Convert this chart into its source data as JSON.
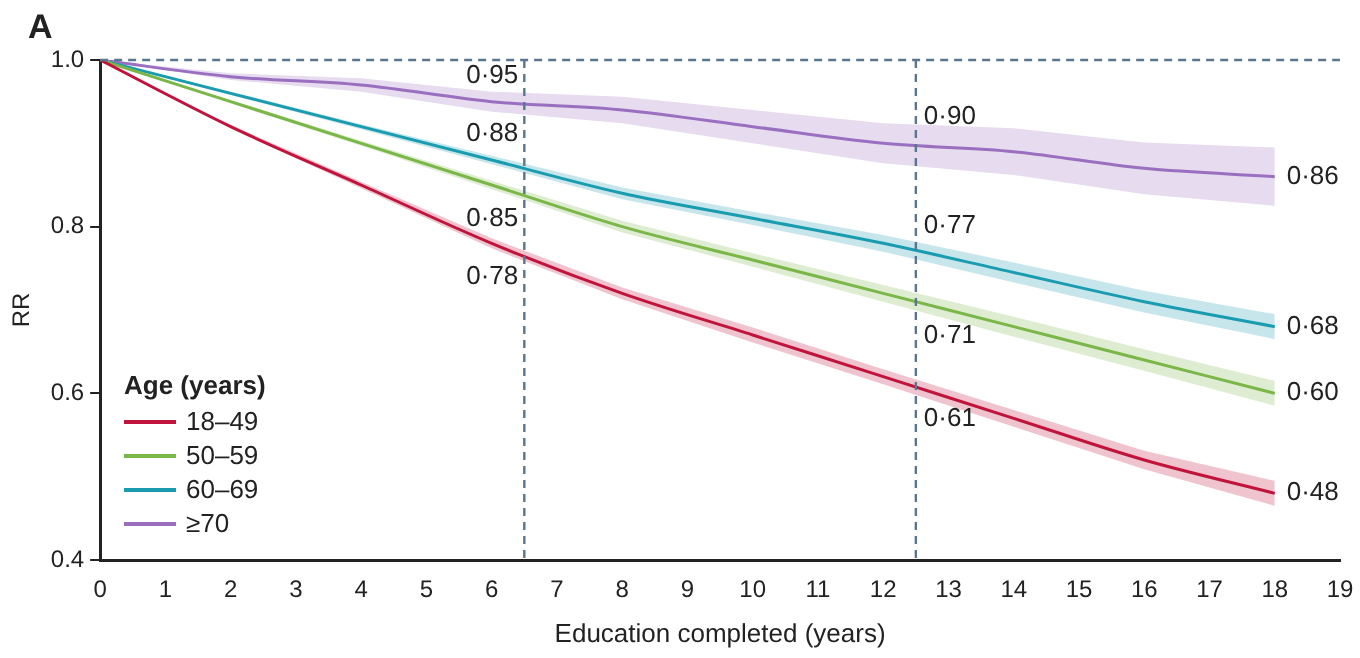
{
  "chart_data": {
    "type": "line",
    "title": "A",
    "xlabel": "Education completed (years)",
    "ylabel": "RR",
    "legend_title": "Age (years)",
    "legend": "bottom left",
    "grid": false,
    "marker": "none",
    "line_style": "solid",
    "x": [
      0,
      2,
      4,
      6,
      8,
      10,
      12,
      14,
      16,
      18
    ],
    "xlim": [
      0,
      19
    ],
    "xticks": [
      0,
      1,
      2,
      3,
      4,
      5,
      6,
      7,
      8,
      9,
      10,
      11,
      12,
      13,
      14,
      15,
      16,
      17,
      18,
      19
    ],
    "ylim": [
      0.4,
      1.0
    ],
    "yticks": [
      0.4,
      0.6,
      0.8,
      {
        "value": 1.0,
        "label": "1.0"
      }
    ],
    "series": [
      {
        "name": "18–49",
        "color": "#c0143c",
        "values": [
          1,
          0.92,
          0.85,
          0.78,
          0.72,
          0.67,
          0.62,
          0.57,
          0.52,
          0.48
        ],
        "lower": [
          1,
          0.918,
          0.846,
          0.774,
          0.713,
          0.661,
          0.611,
          0.56,
          0.509,
          0.465
        ],
        "upper": [
          1,
          0.922,
          0.854,
          0.786,
          0.727,
          0.679,
          0.629,
          0.58,
          0.531,
          0.495
        ]
      },
      {
        "name": "50–59",
        "color": "#7ab648",
        "values": [
          1,
          0.95,
          0.9,
          0.85,
          0.8,
          0.76,
          0.72,
          0.68,
          0.64,
          0.6
        ],
        "lower": [
          1,
          0.948,
          0.897,
          0.845,
          0.793,
          0.752,
          0.71,
          0.668,
          0.627,
          0.585
        ],
        "upper": [
          1,
          0.952,
          0.903,
          0.855,
          0.807,
          0.768,
          0.73,
          0.692,
          0.653,
          0.615
        ]
      },
      {
        "name": "60–69",
        "color": "#1a9cb0",
        "values": [
          1,
          0.96,
          0.92,
          0.88,
          0.84,
          0.81,
          0.78,
          0.745,
          0.71,
          0.68
        ],
        "lower": [
          1,
          0.958,
          0.917,
          0.875,
          0.833,
          0.802,
          0.77,
          0.733,
          0.697,
          0.665
        ],
        "upper": [
          1,
          0.962,
          0.923,
          0.885,
          0.847,
          0.818,
          0.79,
          0.757,
          0.723,
          0.695
        ]
      },
      {
        "name": "≥70",
        "color": "#9b6fc0",
        "values": [
          1,
          0.98,
          0.97,
          0.95,
          0.94,
          0.92,
          0.9,
          0.89,
          0.87,
          0.86
        ],
        "lower": [
          1,
          0.976,
          0.962,
          0.938,
          0.924,
          0.9,
          0.876,
          0.862,
          0.839,
          0.825
        ],
        "upper": [
          1,
          0.984,
          0.978,
          0.962,
          0.956,
          0.94,
          0.924,
          0.918,
          0.901,
          0.895
        ]
      }
    ],
    "ref_lines": [
      {
        "axis": "x",
        "value": 6.5,
        "line_style": "dashed",
        "color": "#5a7590"
      },
      {
        "axis": "x",
        "value": 12.5,
        "line_style": "dashed",
        "color": "#5a7590"
      },
      {
        "axis": "y",
        "value": 1.0,
        "line_style": "dashed",
        "color": "#5a7590"
      }
    ],
    "annotations": [
      {
        "text": "0·95",
        "x": 6.5,
        "y": 0.95
      },
      {
        "text": "0·88",
        "x": 6.5,
        "y": 0.88
      },
      {
        "text": "0·85",
        "x": 6.5,
        "y": 0.85
      },
      {
        "text": "0·78",
        "x": 6.5,
        "y": 0.78
      },
      {
        "text": "0·90",
        "x": 12.5,
        "y": 0.9
      },
      {
        "text": "0·77",
        "x": 12.5,
        "y": 0.77
      },
      {
        "text": "0·71",
        "x": 12.5,
        "y": 0.71
      },
      {
        "text": "0·61",
        "x": 12.5,
        "y": 0.61
      },
      {
        "text": "0·86",
        "x": 18,
        "y": 0.86
      },
      {
        "text": "0·68",
        "x": 18,
        "y": 0.68
      },
      {
        "text": "0·60",
        "x": 18,
        "y": 0.6
      },
      {
        "text": "0·48",
        "x": 18,
        "y": 0.48
      }
    ]
  }
}
